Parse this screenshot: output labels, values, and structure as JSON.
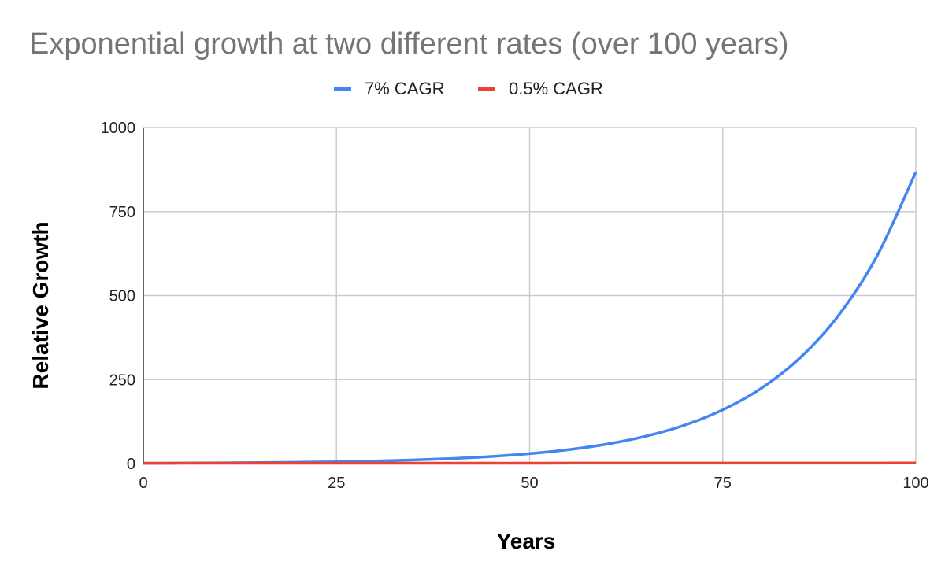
{
  "chart_data": {
    "type": "line",
    "title": "Exponential growth at two different rates (over 100 years)",
    "xlabel": "Years",
    "ylabel": "Relative Growth",
    "xlim": [
      0,
      100
    ],
    "ylim": [
      0,
      1000
    ],
    "x_ticks": [
      "0",
      "25",
      "50",
      "75",
      "100"
    ],
    "y_ticks": [
      "0",
      "250",
      "500",
      "750",
      "1000"
    ],
    "grid": true,
    "legend_position": "top",
    "x": [
      0,
      5,
      10,
      15,
      20,
      25,
      30,
      35,
      40,
      45,
      50,
      55,
      60,
      65,
      70,
      75,
      80,
      85,
      90,
      95,
      100
    ],
    "series": [
      {
        "name": "7% CAGR",
        "color": "#4285f4",
        "values": [
          1,
          1.4,
          2.0,
          2.8,
          3.9,
          5.4,
          7.6,
          10.7,
          15.0,
          21.0,
          29.5,
          41.3,
          57.9,
          81.3,
          113.9,
          159.9,
          224.2,
          314.5,
          441.1,
          618.7,
          867.7
        ]
      },
      {
        "name": "0.5% CAGR",
        "color": "#ea4335",
        "values": [
          1,
          1.03,
          1.05,
          1.08,
          1.1,
          1.13,
          1.16,
          1.19,
          1.22,
          1.25,
          1.28,
          1.32,
          1.35,
          1.38,
          1.42,
          1.45,
          1.49,
          1.53,
          1.57,
          1.61,
          1.65
        ]
      }
    ]
  }
}
